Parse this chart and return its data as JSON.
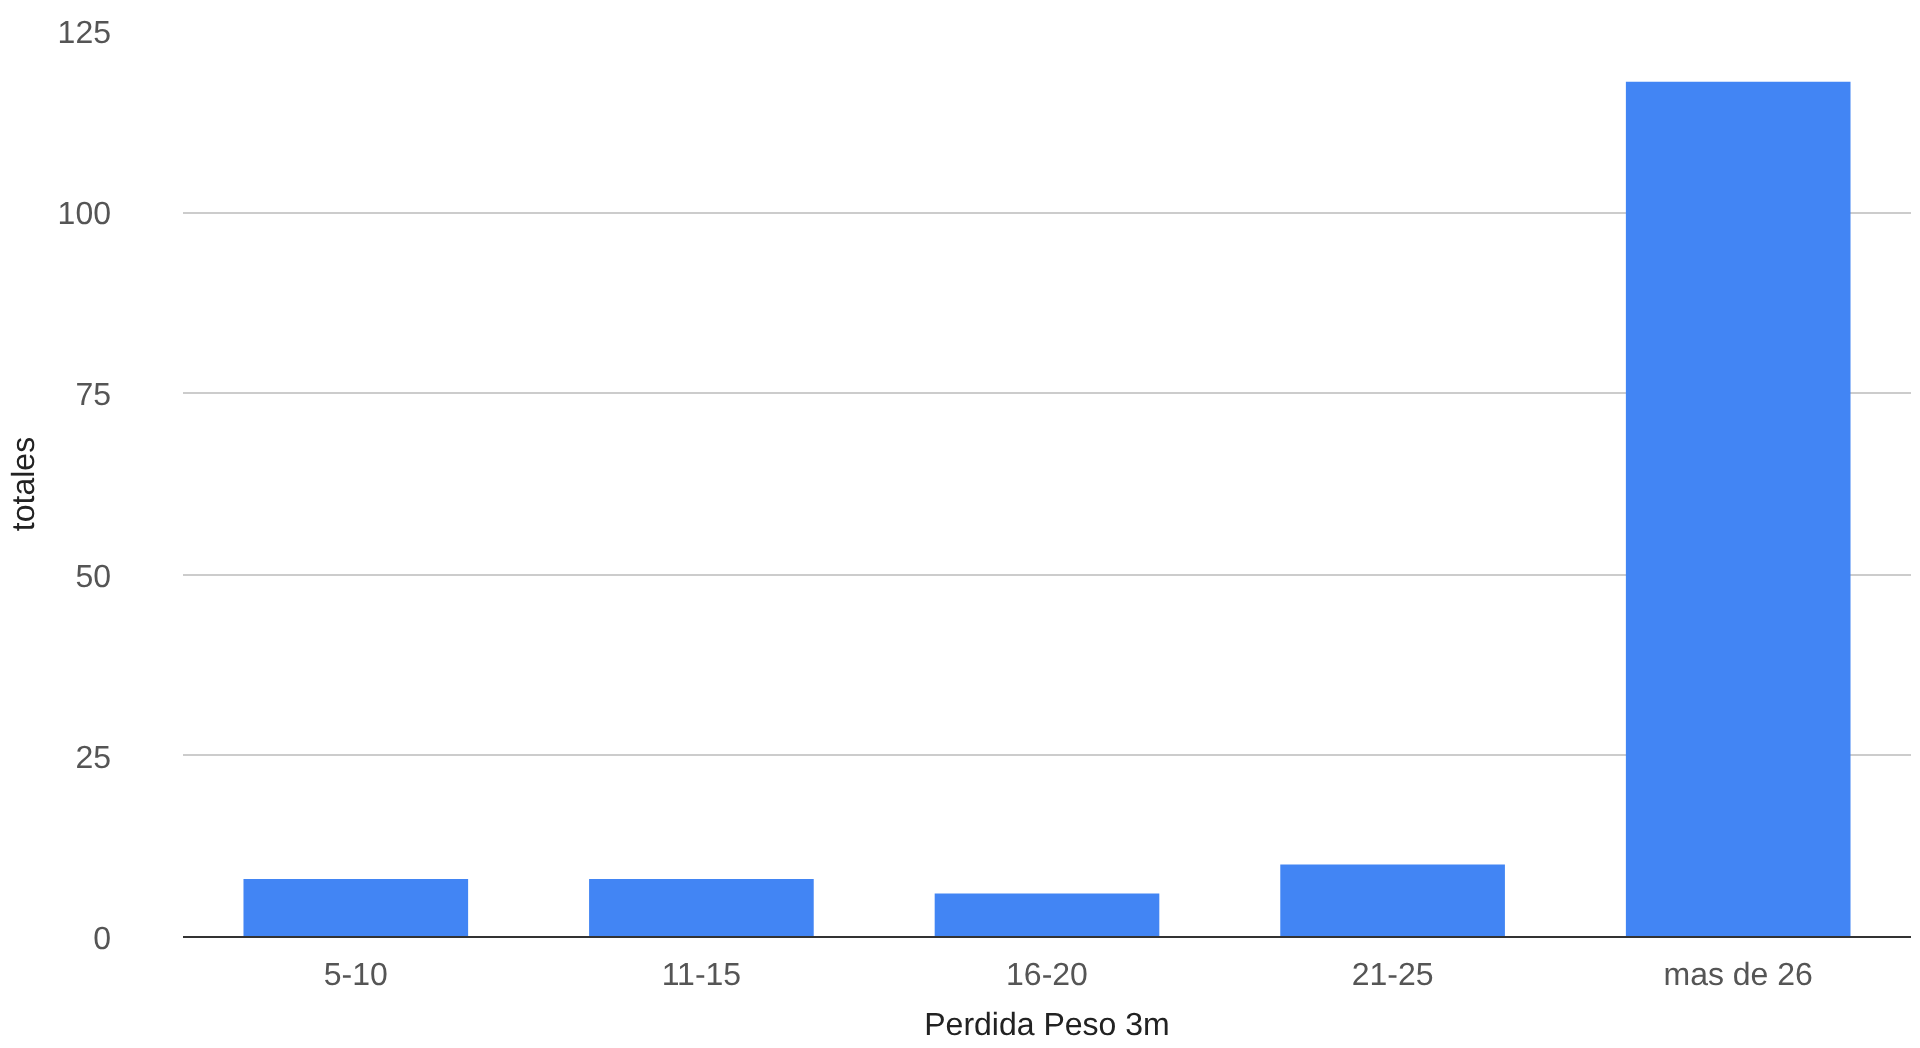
{
  "chart_data": {
    "type": "bar",
    "xlabel": "Perdida Peso 3m",
    "ylabel": "totales",
    "categories": [
      "5-10",
      "11-15",
      "16-20",
      "21-25",
      "mas de 26"
    ],
    "values": [
      8,
      8,
      6,
      10,
      118
    ],
    "color": "#4285f4",
    "ylim": [
      0,
      125
    ],
    "yticks": [
      0,
      25,
      50,
      75,
      100,
      125
    ],
    "grid": "y"
  }
}
